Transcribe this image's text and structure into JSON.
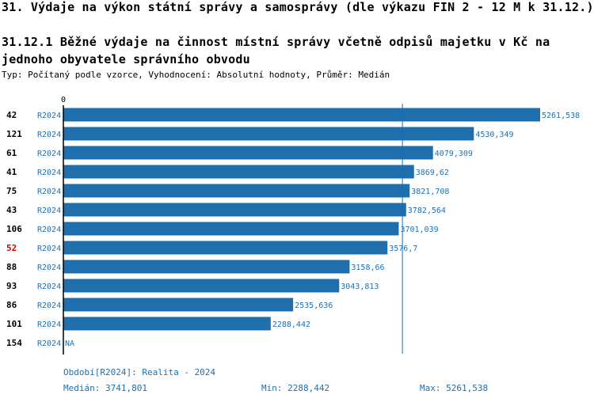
{
  "header": {
    "title": "31. Výdaje na výkon státní správy a samosprávy (dle výkazu FIN 2 - 12 M k 31.12.)",
    "subtitle": "31.12.1 Běžné výdaje na činnost místní správy včetně odpisů majetku v Kč na jednoho obyvatele správního obvodu",
    "type_line": "Typ: Počítaný podle vzorce, Vyhodnocení: Absolutní hodnoty, Průměr: Medián"
  },
  "chart_data": {
    "type": "bar",
    "orientation": "horizontal",
    "axis_zero_label": "0",
    "xlim": [
      0,
      5261.538
    ],
    "median_line": 3741.801,
    "highlight_color": "#cc0000",
    "bar_color": "#1f6fae",
    "rows": [
      {
        "id": "42",
        "period": "R2024",
        "value": 5261.538,
        "label": "5261,538",
        "highlight": false
      },
      {
        "id": "121",
        "period": "R2024",
        "value": 4530.349,
        "label": "4530,349",
        "highlight": false
      },
      {
        "id": "61",
        "period": "R2024",
        "value": 4079.309,
        "label": "4079,309",
        "highlight": false
      },
      {
        "id": "41",
        "period": "R2024",
        "value": 3869.62,
        "label": "3869,62",
        "highlight": false
      },
      {
        "id": "75",
        "period": "R2024",
        "value": 3821.708,
        "label": "3821,708",
        "highlight": false
      },
      {
        "id": "43",
        "period": "R2024",
        "value": 3782.564,
        "label": "3782,564",
        "highlight": false
      },
      {
        "id": "106",
        "period": "R2024",
        "value": 3701.039,
        "label": "3701,039",
        "highlight": false
      },
      {
        "id": "52",
        "period": "R2024",
        "value": 3576.7,
        "label": "3576,7",
        "highlight": true
      },
      {
        "id": "88",
        "period": "R2024",
        "value": 3158.66,
        "label": "3158,66",
        "highlight": false
      },
      {
        "id": "93",
        "period": "R2024",
        "value": 3043.813,
        "label": "3043,813",
        "highlight": false
      },
      {
        "id": "86",
        "period": "R2024",
        "value": 2535.636,
        "label": "2535,636",
        "highlight": false
      },
      {
        "id": "101",
        "period": "R2024",
        "value": 2288.442,
        "label": "2288,442",
        "highlight": false
      },
      {
        "id": "154",
        "period": "R2024",
        "value": null,
        "label": "NA",
        "highlight": false
      }
    ]
  },
  "footer": {
    "period": "Období[R2024]: Realita - 2024",
    "median": "Medián: 3741,801",
    "min": "Min: 2288,442",
    "max": "Max: 5261,538"
  }
}
